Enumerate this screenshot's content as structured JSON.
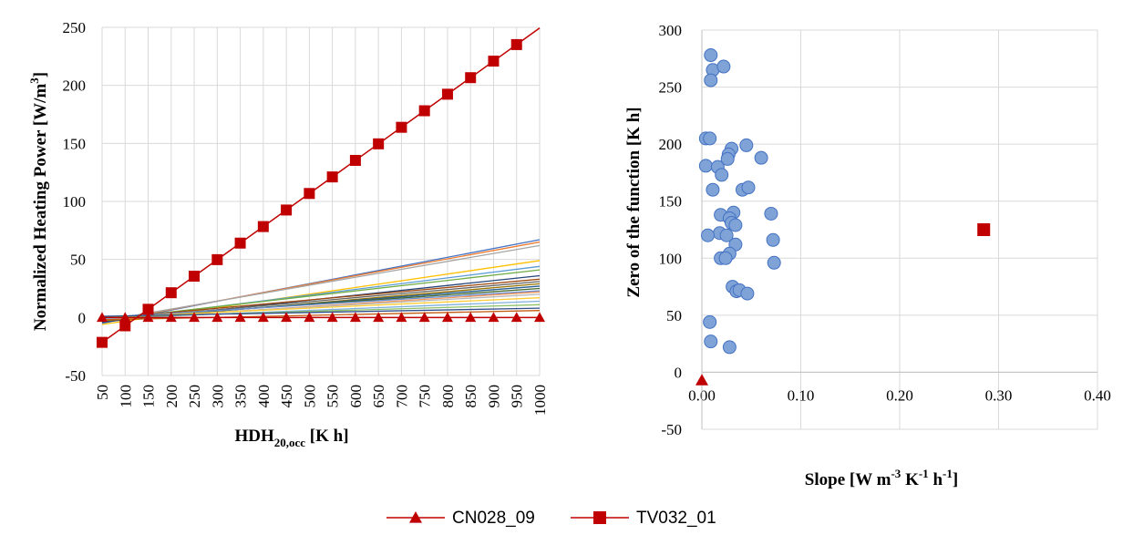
{
  "chart_data": [
    {
      "type": "line",
      "x": [
        50,
        100,
        150,
        200,
        250,
        300,
        350,
        400,
        450,
        500,
        550,
        600,
        650,
        700,
        750,
        800,
        850,
        900,
        950,
        1000
      ],
      "xlabel": "HDH20,occ [K h]",
      "ylabel": "Normalized Heating Power [W/m3]",
      "ylim": [
        -50,
        250
      ],
      "yticks": [
        "-50",
        "0",
        "50",
        "100",
        "150",
        "200",
        "250"
      ],
      "grid": true,
      "series": [
        {
          "name": "CN028_09",
          "marker": "triangle",
          "color": "#C00000",
          "slope": 0.0,
          "intercept": 0.0
        },
        {
          "name": "TV032_01",
          "marker": "square",
          "color": "#C00000",
          "slope": 0.2851,
          "intercept": -35.7
        }
      ],
      "background_lines": {
        "colors": [
          "#4472C4",
          "#ED7D31",
          "#A5A5A5",
          "#FFC000",
          "#5B9BD5",
          "#70AD47",
          "#264478",
          "#9E480E",
          "#636363",
          "#997300",
          "#255E91",
          "#43682B",
          "#698ED0",
          "#F1975A",
          "#B7B7B7",
          "#FFCD33",
          "#7CAFDD",
          "#8CC168",
          "#334F8B",
          "#C55A11"
        ],
        "end_values_at_1000": [
          67,
          65,
          62,
          49,
          44,
          41,
          36,
          33,
          31,
          29,
          27,
          25,
          23,
          22,
          20,
          17,
          14,
          11,
          8,
          6
        ],
        "start_values_at_50": [
          -5,
          -4,
          -3,
          -6,
          -3,
          -2,
          -4,
          -1,
          -2,
          -3,
          -2,
          -1,
          0,
          -2,
          -1,
          0,
          -1,
          0,
          1,
          -2
        ]
      }
    },
    {
      "type": "scatter",
      "xlabel": "Slope [W m-3 K-1 h-1]",
      "ylabel": "Zero of the function [K h]",
      "xlim": [
        0,
        0.4
      ],
      "ylim": [
        -50,
        300
      ],
      "xticks": [
        "0.00",
        "0.10",
        "0.20",
        "0.30",
        "0.40"
      ],
      "yticks": [
        "-50",
        "0",
        "50",
        "100",
        "150",
        "200",
        "250",
        "300"
      ],
      "grid": true,
      "points": [
        [
          0.009,
          278
        ],
        [
          0.011,
          265
        ],
        [
          0.022,
          268
        ],
        [
          0.009,
          256
        ],
        [
          0.004,
          205
        ],
        [
          0.008,
          205
        ],
        [
          0.03,
          196
        ],
        [
          0.027,
          191
        ],
        [
          0.026,
          187
        ],
        [
          0.045,
          199
        ],
        [
          0.06,
          188
        ],
        [
          0.004,
          181
        ],
        [
          0.016,
          180
        ],
        [
          0.02,
          173
        ],
        [
          0.011,
          160
        ],
        [
          0.041,
          160
        ],
        [
          0.047,
          162
        ],
        [
          0.032,
          140
        ],
        [
          0.019,
          138
        ],
        [
          0.028,
          135
        ],
        [
          0.03,
          131
        ],
        [
          0.034,
          129
        ],
        [
          0.07,
          139
        ],
        [
          0.072,
          116
        ],
        [
          0.018,
          122
        ],
        [
          0.025,
          120
        ],
        [
          0.006,
          120
        ],
        [
          0.034,
          112
        ],
        [
          0.028,
          104
        ],
        [
          0.019,
          100
        ],
        [
          0.024,
          100
        ],
        [
          0.073,
          96
        ],
        [
          0.031,
          75
        ],
        [
          0.035,
          71
        ],
        [
          0.038,
          72
        ],
        [
          0.046,
          69
        ],
        [
          0.008,
          44
        ],
        [
          0.009,
          27
        ],
        [
          0.028,
          22
        ]
      ],
      "highlight": [
        {
          "name": "CN028_09",
          "x": 0.0,
          "y": -7,
          "marker": "triangle",
          "color": "#C00000"
        },
        {
          "name": "TV032_01",
          "x": 0.285,
          "y": 125,
          "marker": "square",
          "color": "#C00000"
        }
      ]
    }
  ],
  "legend": {
    "placement": "bottom",
    "items": [
      {
        "label": "CN028_09",
        "marker": "triangle"
      },
      {
        "label": "TV032_01",
        "marker": "square"
      }
    ]
  }
}
